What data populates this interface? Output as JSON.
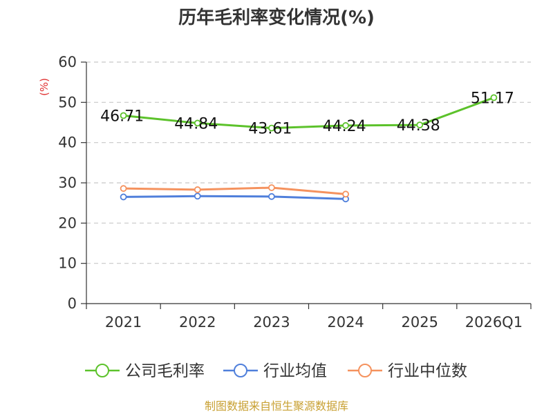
{
  "chart_data": {
    "type": "line",
    "title": "历年毛利率变化情况(%)",
    "ylabel": "(%)",
    "categories": [
      "2021",
      "2022",
      "2023",
      "2024",
      "2025",
      "2026Q1"
    ],
    "ylim": [
      0,
      60
    ],
    "yticks": [
      "0",
      "10",
      "20",
      "30",
      "40",
      "50",
      "60"
    ],
    "grid": true,
    "legend_position": "bottom",
    "series": [
      {
        "name": "公司毛利率",
        "color": "#5cc22b",
        "values": [
          46.71,
          44.84,
          43.61,
          44.24,
          44.38,
          51.17
        ],
        "labels": [
          "46.71",
          "44.84",
          "43.61",
          "44.24",
          "44.38",
          "51.17"
        ]
      },
      {
        "name": "行业均值",
        "color": "#4f7fdb",
        "values": [
          26.5,
          26.7,
          26.6,
          26.0,
          null,
          null
        ]
      },
      {
        "name": "行业中位数",
        "color": "#f5925e",
        "values": [
          28.6,
          28.3,
          28.8,
          27.2,
          null,
          null
        ]
      }
    ]
  },
  "source": "制图数据来自恒生聚源数据库"
}
